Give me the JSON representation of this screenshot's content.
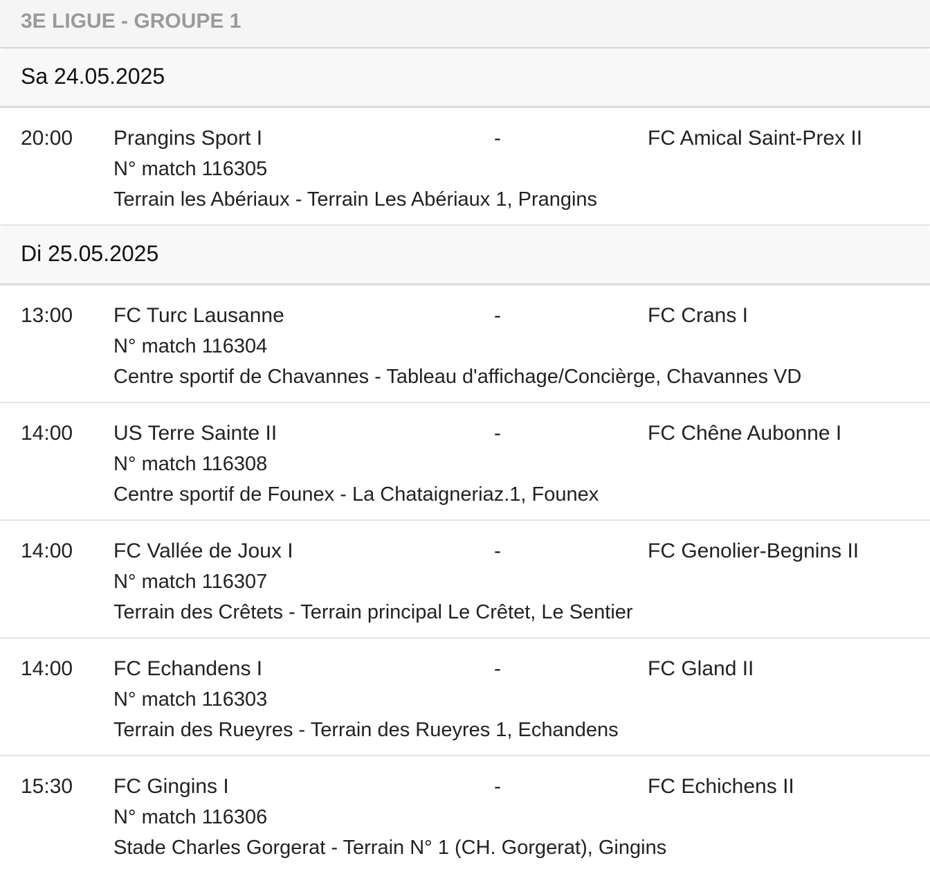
{
  "header": {
    "title": "3E LIGUE - GROUPE 1"
  },
  "days": [
    {
      "date": "Sa 24.05.2025",
      "matches": [
        {
          "time": "20:00",
          "home": "Prangins Sport I",
          "sep": "-",
          "away": "FC Amical Saint-Prex II",
          "number": "N° match 116305",
          "venue": "Terrain les Abériaux - Terrain Les Abériaux 1, Prangins"
        }
      ]
    },
    {
      "date": "Di 25.05.2025",
      "matches": [
        {
          "time": "13:00",
          "home": "FC Turc Lausanne",
          "sep": "-",
          "away": "FC Crans I",
          "number": "N° match 116304",
          "venue": "Centre sportif de Chavannes - Tableau d'affichage/Concièrge, Chavannes VD"
        },
        {
          "time": "14:00",
          "home": "US Terre Sainte II",
          "sep": "-",
          "away": "FC Chêne Aubonne I",
          "number": "N° match 116308",
          "venue": "Centre sportif de Founex - La Chataigneriaz.1, Founex"
        },
        {
          "time": "14:00",
          "home": "FC Vallée de Joux I",
          "sep": "-",
          "away": "FC Genolier-Begnins II",
          "number": "N° match 116307",
          "venue": "Terrain des Crêtets - Terrain principal Le Crêtet, Le Sentier"
        },
        {
          "time": "14:00",
          "home": "FC Echandens I",
          "sep": "-",
          "away": "FC Gland II",
          "number": "N° match 116303",
          "venue": "Terrain des Rueyres - Terrain des Rueyres 1, Echandens"
        },
        {
          "time": "15:30",
          "home": "FC Gingins I",
          "sep": "-",
          "away": "FC Echichens II",
          "number": "N° match 116306",
          "venue": "Stade Charles Gorgerat - Terrain N° 1 (CH. Gorgerat), Gingins"
        }
      ]
    }
  ]
}
